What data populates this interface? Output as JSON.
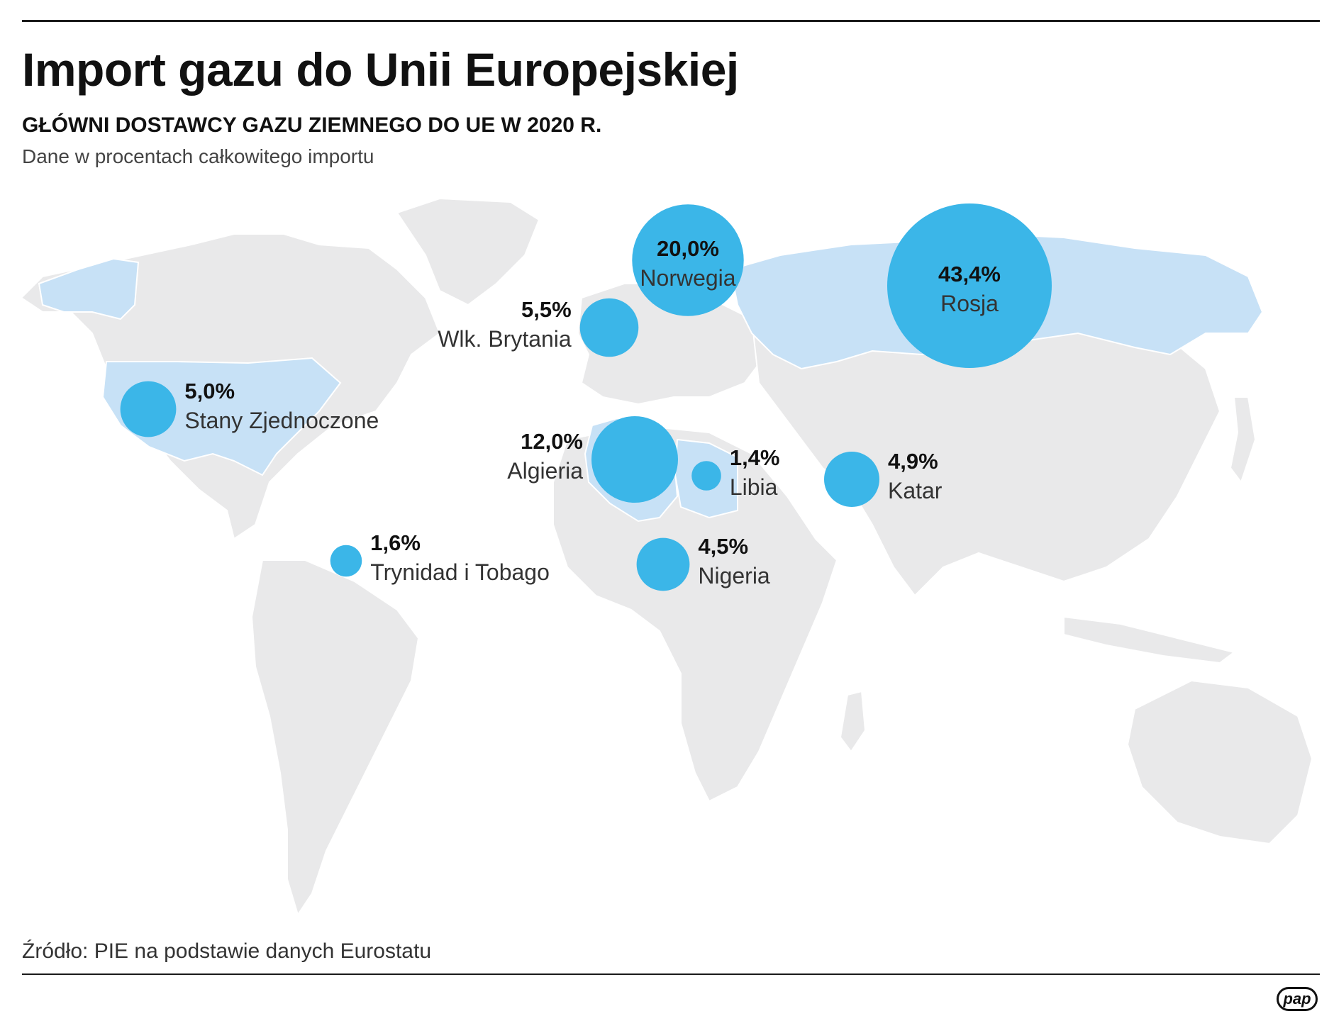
{
  "header": {
    "title": "Import gazu do Unii Europejskiej",
    "subtitle": "GŁÓWNI DOSTAWCY GAZU ZIEMNEGO DO UE W 2020 R.",
    "note": "Dane w procentach całkowitego importu"
  },
  "footer": {
    "source": "Źródło: PIE na podstawie danych Eurostatu",
    "logo_text": "pap"
  },
  "colors": {
    "bubble": "#3bb6e8",
    "supplier_land": "#c7e1f6",
    "land": "#e9e9ea"
  },
  "suppliers": [
    {
      "name": "Rosja",
      "value": 43.4,
      "label": "43,4%"
    },
    {
      "name": "Norwegia",
      "value": 20.0,
      "label": "20,0%"
    },
    {
      "name": "Algieria",
      "value": 12.0,
      "label": "12,0%"
    },
    {
      "name": "Wlk. Brytania",
      "value": 5.5,
      "label": "5,5%"
    },
    {
      "name": "Stany Zjednoczone",
      "value": 5.0,
      "label": "5,0%"
    },
    {
      "name": "Katar",
      "value": 4.9,
      "label": "4,9%"
    },
    {
      "name": "Nigeria",
      "value": 4.5,
      "label": "4,5%"
    },
    {
      "name": "Trynidad i Tobago",
      "value": 1.6,
      "label": "1,6%"
    },
    {
      "name": "Libia",
      "value": 1.4,
      "label": "1,4%"
    }
  ]
}
